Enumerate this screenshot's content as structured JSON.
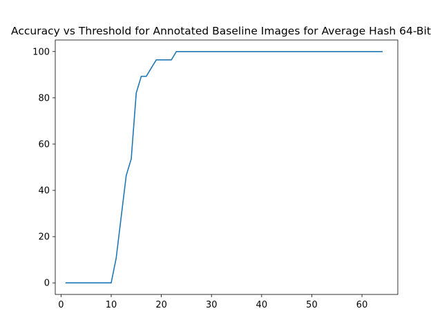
{
  "chart_data": {
    "type": "line",
    "title": "Accuracy vs Threshold for Annotated Baseline Images for Average Hash 64-Bit",
    "xlabel": "",
    "ylabel": "",
    "xlim": [
      -1.15,
      67.15
    ],
    "ylim": [
      -5,
      105
    ],
    "xticks": [
      0,
      10,
      20,
      30,
      40,
      50,
      60
    ],
    "yticks": [
      0,
      20,
      40,
      60,
      80,
      100
    ],
    "grid": false,
    "series": [
      {
        "color": "#1f77b4",
        "x": [
          1,
          2,
          3,
          4,
          5,
          6,
          7,
          8,
          9,
          10,
          11,
          12,
          13,
          14,
          15,
          16,
          17,
          18,
          19,
          20,
          21,
          22,
          23,
          24,
          25,
          26,
          27,
          28,
          29,
          30,
          31,
          32,
          33,
          34,
          35,
          36,
          37,
          38,
          39,
          40,
          41,
          42,
          43,
          44,
          45,
          46,
          47,
          48,
          49,
          50,
          51,
          52,
          53,
          54,
          55,
          56,
          57,
          58,
          59,
          60,
          61,
          62,
          63,
          64
        ],
        "y": [
          0,
          0,
          0,
          0,
          0,
          0,
          0,
          0,
          0,
          0,
          10.7,
          28.6,
          46.4,
          53.6,
          82.1,
          89.3,
          89.3,
          92.9,
          96.4,
          96.4,
          96.4,
          96.4,
          100,
          100,
          100,
          100,
          100,
          100,
          100,
          100,
          100,
          100,
          100,
          100,
          100,
          100,
          100,
          100,
          100,
          100,
          100,
          100,
          100,
          100,
          100,
          100,
          100,
          100,
          100,
          100,
          100,
          100,
          100,
          100,
          100,
          100,
          100,
          100,
          100,
          100,
          100,
          100,
          100,
          100
        ]
      }
    ]
  }
}
